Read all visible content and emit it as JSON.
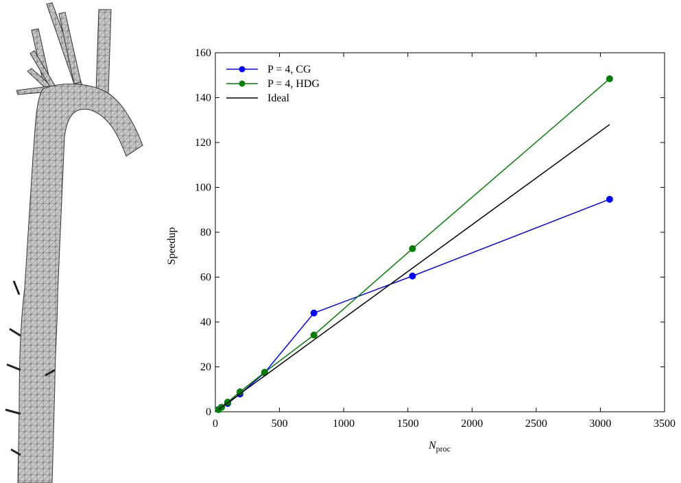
{
  "chart_data": {
    "type": "line",
    "x_label": "N",
    "x_label_sub": "proc",
    "y_label": "Speedup",
    "x": [
      24,
      48,
      96,
      192,
      384,
      768,
      1536,
      3072
    ],
    "series": [
      {
        "name": "P = 4, CG",
        "color": "#0000ff",
        "marker": true,
        "values": [
          1,
          2,
          3.7,
          7.9,
          17.4,
          44,
          60.5,
          94.7
        ]
      },
      {
        "name": "P = 4, HDG",
        "color": "#008000",
        "marker": true,
        "values": [
          1,
          2,
          4.3,
          8.9,
          17.6,
          34.2,
          72.7,
          148.4
        ]
      },
      {
        "name": "Ideal",
        "color": "#000000",
        "marker": false,
        "values": [
          1,
          2,
          4,
          8,
          16,
          32,
          64,
          128
        ]
      }
    ],
    "xlim": [
      0,
      3500
    ],
    "xticks": [
      0,
      500,
      1000,
      1500,
      2000,
      2500,
      3000,
      3500
    ],
    "ylim": [
      0,
      160
    ],
    "yticks": [
      0,
      20,
      40,
      60,
      80,
      100,
      120,
      140,
      160
    ],
    "legend": "upper-left",
    "grid": false
  }
}
